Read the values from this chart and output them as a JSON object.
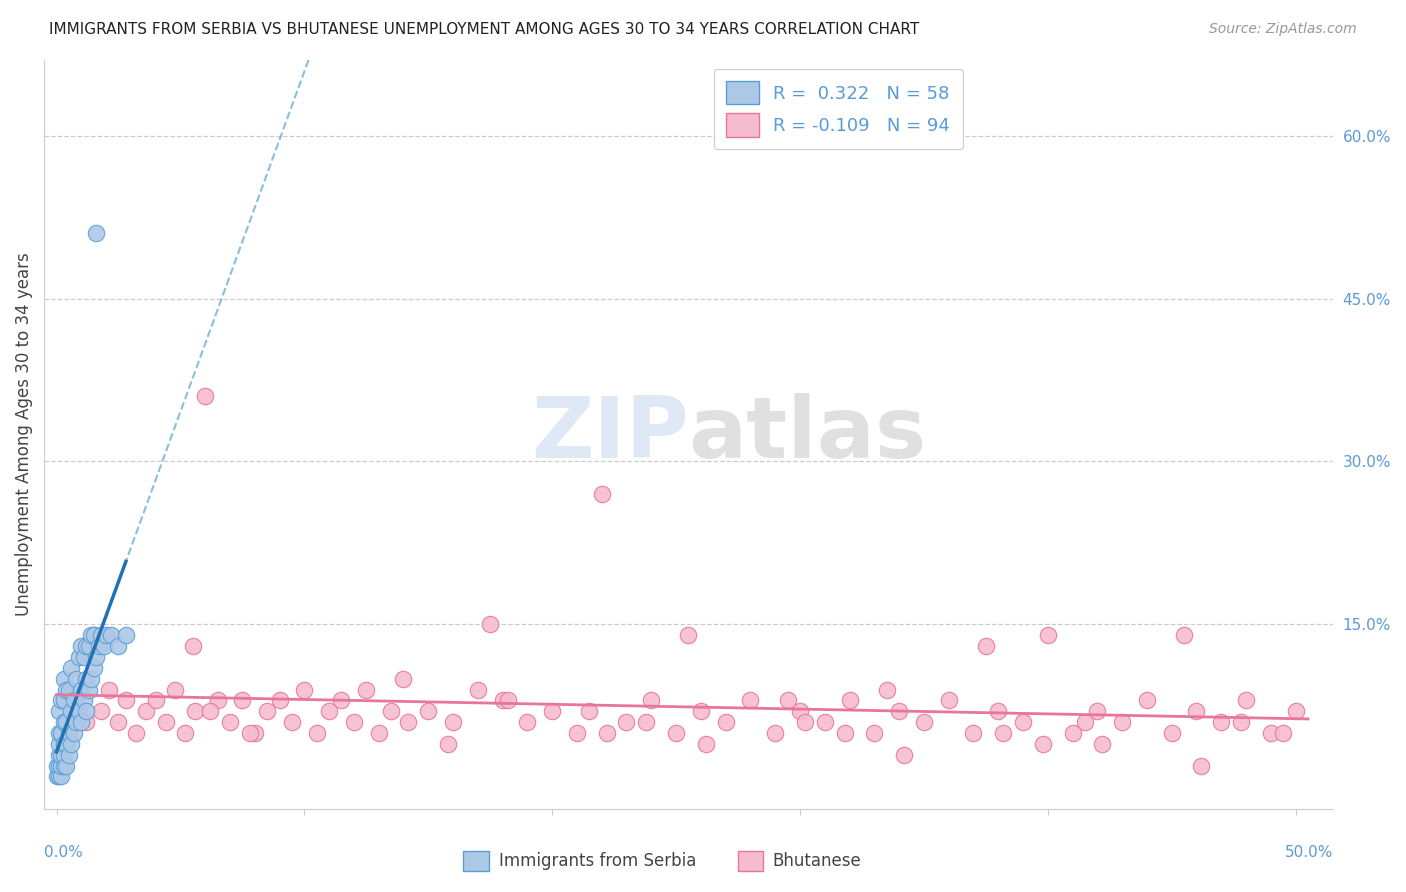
{
  "title": "IMMIGRANTS FROM SERBIA VS BHUTANESE UNEMPLOYMENT AMONG AGES 30 TO 34 YEARS CORRELATION CHART",
  "source": "Source: ZipAtlas.com",
  "ylabel": "Unemployment Among Ages 30 to 34 years",
  "xlim": [
    -0.005,
    0.515
  ],
  "ylim": [
    -0.02,
    0.67
  ],
  "x_ticks": [
    0.0,
    0.1,
    0.2,
    0.3,
    0.4,
    0.5
  ],
  "x_tick_labels_ends": [
    "0.0%",
    "50.0%"
  ],
  "x_tick_ends": [
    0.0,
    0.5
  ],
  "y_ticks_right": [
    0.15,
    0.3,
    0.45,
    0.6
  ],
  "y_tick_labels_right": [
    "15.0%",
    "30.0%",
    "45.0%",
    "60.0%"
  ],
  "grid_color": "#cccccc",
  "background_color": "#ffffff",
  "serbia_color": "#adc8e6",
  "serbia_edge_color": "#5a9fd4",
  "bhutan_color": "#f5bcd0",
  "bhutan_edge_color": "#e8759a",
  "serbia_R": 0.322,
  "serbia_N": 58,
  "bhutan_R": -0.109,
  "bhutan_N": 94,
  "serbia_x": [
    0.0,
    0.0,
    0.001,
    0.001,
    0.001,
    0.001,
    0.001,
    0.001,
    0.002,
    0.002,
    0.002,
    0.002,
    0.002,
    0.003,
    0.003,
    0.003,
    0.003,
    0.003,
    0.003,
    0.004,
    0.004,
    0.004,
    0.004,
    0.005,
    0.005,
    0.005,
    0.006,
    0.006,
    0.006,
    0.007,
    0.007,
    0.008,
    0.008,
    0.009,
    0.009,
    0.01,
    0.01,
    0.01,
    0.011,
    0.011,
    0.012,
    0.012,
    0.012,
    0.013,
    0.013,
    0.014,
    0.014,
    0.015,
    0.015,
    0.016,
    0.016,
    0.017,
    0.018,
    0.019,
    0.02,
    0.022,
    0.025,
    0.028
  ],
  "serbia_y": [
    0.01,
    0.02,
    0.01,
    0.02,
    0.03,
    0.04,
    0.05,
    0.07,
    0.01,
    0.02,
    0.03,
    0.05,
    0.08,
    0.02,
    0.03,
    0.04,
    0.06,
    0.08,
    0.1,
    0.02,
    0.04,
    0.06,
    0.09,
    0.03,
    0.05,
    0.09,
    0.04,
    0.07,
    0.11,
    0.05,
    0.08,
    0.06,
    0.1,
    0.07,
    0.12,
    0.06,
    0.09,
    0.13,
    0.08,
    0.12,
    0.07,
    0.1,
    0.13,
    0.09,
    0.13,
    0.1,
    0.14,
    0.11,
    0.14,
    0.12,
    0.51,
    0.13,
    0.14,
    0.13,
    0.14,
    0.14,
    0.13,
    0.14
  ],
  "bhutan_x": [
    0.005,
    0.008,
    0.012,
    0.015,
    0.018,
    0.021,
    0.025,
    0.028,
    0.032,
    0.036,
    0.04,
    0.044,
    0.048,
    0.052,
    0.056,
    0.06,
    0.065,
    0.07,
    0.075,
    0.08,
    0.085,
    0.09,
    0.095,
    0.1,
    0.105,
    0.11,
    0.115,
    0.12,
    0.125,
    0.13,
    0.14,
    0.15,
    0.16,
    0.17,
    0.18,
    0.19,
    0.2,
    0.21,
    0.22,
    0.23,
    0.24,
    0.25,
    0.26,
    0.27,
    0.28,
    0.29,
    0.3,
    0.31,
    0.32,
    0.33,
    0.34,
    0.35,
    0.36,
    0.37,
    0.38,
    0.39,
    0.4,
    0.41,
    0.42,
    0.43,
    0.44,
    0.45,
    0.46,
    0.47,
    0.48,
    0.49,
    0.5,
    0.055,
    0.135,
    0.175,
    0.215,
    0.255,
    0.295,
    0.335,
    0.375,
    0.415,
    0.455,
    0.495,
    0.062,
    0.142,
    0.182,
    0.222,
    0.262,
    0.302,
    0.342,
    0.382,
    0.422,
    0.462,
    0.078,
    0.158,
    0.238,
    0.318,
    0.398,
    0.478
  ],
  "bhutan_y": [
    0.05,
    0.08,
    0.06,
    0.14,
    0.07,
    0.09,
    0.06,
    0.08,
    0.05,
    0.07,
    0.08,
    0.06,
    0.09,
    0.05,
    0.07,
    0.36,
    0.08,
    0.06,
    0.08,
    0.05,
    0.07,
    0.08,
    0.06,
    0.09,
    0.05,
    0.07,
    0.08,
    0.06,
    0.09,
    0.05,
    0.1,
    0.07,
    0.06,
    0.09,
    0.08,
    0.06,
    0.07,
    0.05,
    0.27,
    0.06,
    0.08,
    0.05,
    0.07,
    0.06,
    0.08,
    0.05,
    0.07,
    0.06,
    0.08,
    0.05,
    0.07,
    0.06,
    0.08,
    0.05,
    0.07,
    0.06,
    0.14,
    0.05,
    0.07,
    0.06,
    0.08,
    0.05,
    0.07,
    0.06,
    0.08,
    0.05,
    0.07,
    0.13,
    0.07,
    0.15,
    0.07,
    0.14,
    0.08,
    0.09,
    0.13,
    0.06,
    0.14,
    0.05,
    0.07,
    0.06,
    0.08,
    0.05,
    0.04,
    0.06,
    0.03,
    0.05,
    0.04,
    0.02,
    0.05,
    0.04,
    0.06,
    0.05,
    0.04,
    0.06
  ]
}
